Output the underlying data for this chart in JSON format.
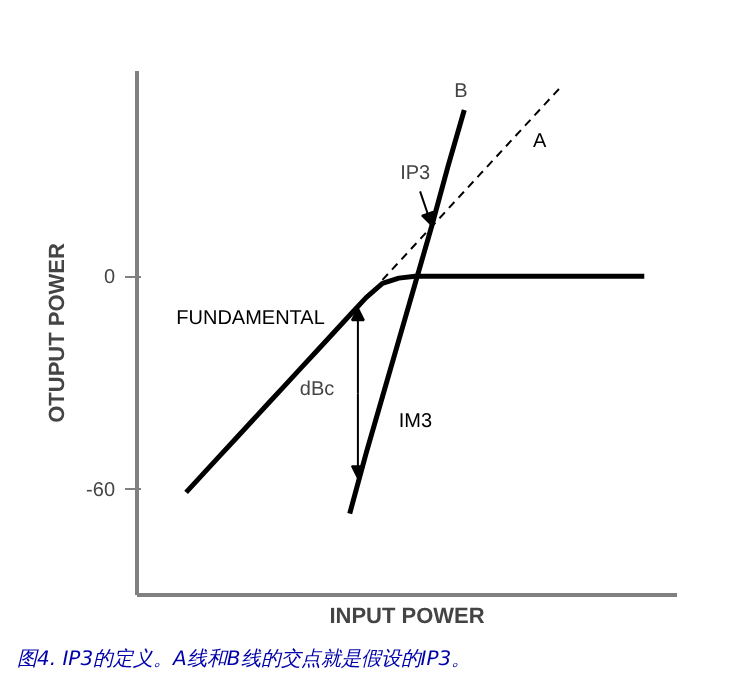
{
  "chart_data": {
    "type": "line",
    "xlabel": "INPUT POWER",
    "ylabel": "OTUPUT POWER",
    "categories": [
      null,
      null,
      null,
      null,
      null,
      null,
      null,
      null,
      null,
      null,
      null,
      null,
      null,
      null,
      null,
      null,
      null,
      null,
      null,
      null,
      null,
      null,
      null,
      null,
      null,
      null,
      null,
      null,
      null,
      null,
      null,
      null
    ],
    "ylim": [
      -90,
      58
    ],
    "yticks": [
      -60,
      0
    ],
    "grid": false,
    "marker": "none",
    "tick_labels": "y",
    "series": [
      {
        "name": "FUNDAMENTAL",
        "color": "#000000",
        "line_style": "solid",
        "values": [
          null,
          null,
          -61,
          -56,
          -51,
          -46,
          -41,
          -36,
          -31,
          -26,
          -21,
          -16,
          -11,
          -6,
          -2,
          -0.5,
          0,
          0,
          0,
          0,
          0,
          0,
          0,
          0,
          0,
          0,
          0,
          0,
          0,
          0,
          0,
          null
        ]
      },
      {
        "name": "A",
        "color": "#000000",
        "line_style": "dashed",
        "values": [
          null,
          null,
          null,
          null,
          null,
          null,
          null,
          null,
          null,
          null,
          null,
          null,
          null,
          null,
          -1,
          4,
          9,
          14,
          19,
          24,
          29,
          34,
          39,
          44,
          49,
          54,
          null,
          null,
          null,
          null,
          null,
          null
        ]
      },
      {
        "name": "IM3",
        "color": "#000000",
        "line_style": "solid",
        "values": [
          null,
          null,
          null,
          null,
          null,
          null,
          null,
          null,
          null,
          null,
          null,
          null,
          -67,
          -50,
          -34,
          -18,
          -2,
          14,
          31,
          47,
          null,
          null,
          null,
          null,
          null,
          null,
          null,
          null,
          null,
          null,
          null,
          null
        ]
      }
    ],
    "annotations": [
      "B",
      "IP3",
      "dBc",
      "图4. IP3的定义。A线和B线的交点就是假设的IP3。"
    ]
  }
}
